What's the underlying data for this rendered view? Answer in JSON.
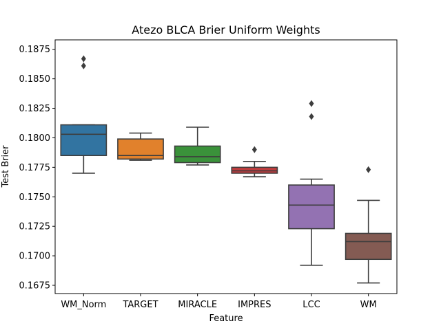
{
  "chart_data": {
    "type": "box",
    "title": "Atezo BLCA Brier Uniform Weights",
    "xlabel": "Feature",
    "ylabel": "Test Brier",
    "ylim": [
      0.1668,
      0.1883
    ],
    "yticks": [
      "0.1675",
      "0.1700",
      "0.1725",
      "0.1750",
      "0.1775",
      "0.1800",
      "0.1825",
      "0.1850",
      "0.1875"
    ],
    "grid": false,
    "categories": [
      "WM_Norm",
      "TARGET",
      "MIRACLE",
      "IMPRES",
      "LCC",
      "WM"
    ],
    "series": [
      {
        "category": "WM_Norm",
        "color": "#3274a1",
        "whisker_low": 0.177,
        "q1": 0.1785,
        "median": 0.1803,
        "q3": 0.1811,
        "whisker_high": 0.1811,
        "outliers": [
          0.1861,
          0.1867
        ]
      },
      {
        "category": "TARGET",
        "color": "#e1812c",
        "whisker_low": 0.1781,
        "q1": 0.1782,
        "median": 0.1785,
        "q3": 0.1799,
        "whisker_high": 0.1804,
        "outliers": []
      },
      {
        "category": "MIRACLE",
        "color": "#3a923a",
        "whisker_low": 0.1777,
        "q1": 0.1779,
        "median": 0.1784,
        "q3": 0.1793,
        "whisker_high": 0.1809,
        "outliers": []
      },
      {
        "category": "IMPRES",
        "color": "#c03d3e",
        "whisker_low": 0.1767,
        "q1": 0.177,
        "median": 0.1772,
        "q3": 0.1775,
        "whisker_high": 0.178,
        "outliers": [
          0.179
        ]
      },
      {
        "category": "LCC",
        "color": "#9372b2",
        "whisker_low": 0.1692,
        "q1": 0.1723,
        "median": 0.1743,
        "q3": 0.176,
        "whisker_high": 0.1765,
        "outliers": [
          0.1818,
          0.1829
        ]
      },
      {
        "category": "WM",
        "color": "#845b53",
        "whisker_low": 0.1677,
        "q1": 0.1697,
        "median": 0.1712,
        "q3": 0.1719,
        "whisker_high": 0.1747,
        "outliers": [
          0.1773
        ]
      }
    ]
  }
}
